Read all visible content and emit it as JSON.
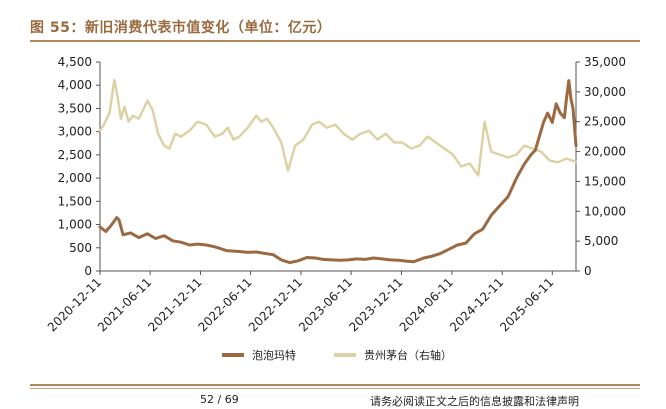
{
  "figure_title": "图 55：新旧消费代表市值变化（单位：亿元）",
  "footer": {
    "page": "52 / 69",
    "note": "请务必阅读正文之后的信息披露和法律声明"
  },
  "colors": {
    "popmart": "#9c6a42",
    "moutai": "#ddd0a2",
    "rule": "#b08a5c"
  },
  "chart_data": {
    "type": "line",
    "x_ticks": [
      "2020-12-11",
      "2021-06-11",
      "2021-12-11",
      "2022-06-11",
      "2022-12-11",
      "2023-06-11",
      "2023-12-11",
      "2024-06-11",
      "2024-12-11",
      "2025-06-11"
    ],
    "xlim": [
      "2020-12-11",
      "2025-09-05"
    ],
    "y_left": {
      "lim": [
        0,
        4500
      ],
      "ticks": [
        "0",
        "500",
        "1,000",
        "1,500",
        "2,000",
        "2,500",
        "3,000",
        "3,500",
        "4,000",
        "4,500"
      ]
    },
    "y_right": {
      "lim": [
        0,
        35000
      ],
      "ticks": [
        "0",
        "5,000",
        "10,000",
        "15,000",
        "20,000",
        "25,000",
        "30,000",
        "35,000"
      ]
    },
    "series": [
      {
        "name": "泡泡玛特",
        "axis": "left",
        "x": [
          "2020-12-11",
          "2021-01-01",
          "2021-01-20",
          "2021-02-10",
          "2021-02-18",
          "2021-03-05",
          "2021-04-01",
          "2021-05-01",
          "2021-06-01",
          "2021-07-01",
          "2021-08-01",
          "2021-09-01",
          "2021-10-01",
          "2021-11-01",
          "2021-12-01",
          "2022-01-01",
          "2022-02-01",
          "2022-03-15",
          "2022-05-01",
          "2022-06-01",
          "2022-07-01",
          "2022-08-01",
          "2022-09-01",
          "2022-10-01",
          "2022-10-31",
          "2022-12-01",
          "2023-01-01",
          "2023-02-01",
          "2023-03-01",
          "2023-04-01",
          "2023-05-01",
          "2023-06-01",
          "2023-07-01",
          "2023-08-01",
          "2023-09-01",
          "2023-10-01",
          "2023-11-01",
          "2023-12-01",
          "2024-01-01",
          "2024-01-25",
          "2024-03-01",
          "2024-04-01",
          "2024-05-01",
          "2024-06-01",
          "2024-07-01",
          "2024-08-01",
          "2024-09-01",
          "2024-10-01",
          "2024-11-01",
          "2024-12-01",
          "2025-01-01",
          "2025-02-01",
          "2025-03-01",
          "2025-03-25",
          "2025-04-10",
          "2025-04-25",
          "2025-05-10",
          "2025-05-25",
          "2025-06-11",
          "2025-06-25",
          "2025-07-10",
          "2025-07-25",
          "2025-08-01",
          "2025-08-10",
          "2025-08-18",
          "2025-08-25",
          "2025-09-05"
        ],
        "y": [
          950,
          850,
          980,
          1150,
          1100,
          780,
          820,
          720,
          800,
          700,
          760,
          650,
          620,
          560,
          580,
          560,
          520,
          440,
          420,
          400,
          410,
          380,
          350,
          240,
          180,
          220,
          290,
          280,
          250,
          240,
          230,
          240,
          260,
          250,
          280,
          260,
          240,
          230,
          210,
          200,
          280,
          320,
          380,
          470,
          560,
          600,
          800,
          900,
          1200,
          1400,
          1600,
          2000,
          2300,
          2500,
          2600,
          2900,
          3200,
          3400,
          3200,
          3600,
          3400,
          3300,
          3700,
          4100,
          3700,
          3500,
          2700
        ]
      },
      {
        "name": "贵州茅台（右轴）",
        "axis": "right",
        "x": [
          "2020-12-11",
          "2020-12-25",
          "2021-01-15",
          "2021-02-01",
          "2021-02-10",
          "2021-02-25",
          "2021-03-10",
          "2021-03-25",
          "2021-04-10",
          "2021-05-01",
          "2021-06-01",
          "2021-06-20",
          "2021-07-10",
          "2021-08-01",
          "2021-08-20",
          "2021-09-10",
          "2021-10-01",
          "2021-11-01",
          "2021-12-01",
          "2022-01-01",
          "2022-02-01",
          "2022-03-01",
          "2022-03-20",
          "2022-04-10",
          "2022-05-01",
          "2022-06-01",
          "2022-07-01",
          "2022-07-20",
          "2022-08-10",
          "2022-09-01",
          "2022-10-01",
          "2022-10-25",
          "2022-11-20",
          "2022-12-20",
          "2023-01-20",
          "2023-02-15",
          "2023-03-15",
          "2023-04-15",
          "2023-05-15",
          "2023-06-15",
          "2023-07-15",
          "2023-08-15",
          "2023-09-15",
          "2023-10-15",
          "2023-11-15",
          "2023-12-15",
          "2024-01-15",
          "2024-02-15",
          "2024-03-15",
          "2024-04-15",
          "2024-05-15",
          "2024-06-15",
          "2024-07-15",
          "2024-08-15",
          "2024-09-15",
          "2024-10-08",
          "2024-11-01",
          "2024-12-01",
          "2025-01-01",
          "2025-02-01",
          "2025-03-01",
          "2025-04-01",
          "2025-05-01",
          "2025-06-01",
          "2025-07-01",
          "2025-08-01",
          "2025-09-05"
        ],
        "y": [
          23500,
          24500,
          26500,
          32000,
          30000,
          25500,
          27500,
          25000,
          26000,
          25500,
          28500,
          27000,
          23000,
          21000,
          20500,
          23000,
          22500,
          23500,
          25000,
          24500,
          22500,
          23000,
          24000,
          22000,
          22500,
          24000,
          26000,
          25000,
          25500,
          24000,
          21500,
          16800,
          21000,
          22000,
          24500,
          25000,
          24000,
          24500,
          23000,
          22000,
          23000,
          23500,
          22000,
          23000,
          21500,
          21500,
          20500,
          21000,
          22500,
          21500,
          20500,
          19500,
          17500,
          18000,
          16000,
          25000,
          20000,
          19500,
          19000,
          19500,
          21000,
          20500,
          20000,
          18500,
          18200,
          18800,
          18300
        ]
      }
    ],
    "legend": {
      "position": "bottom"
    }
  }
}
